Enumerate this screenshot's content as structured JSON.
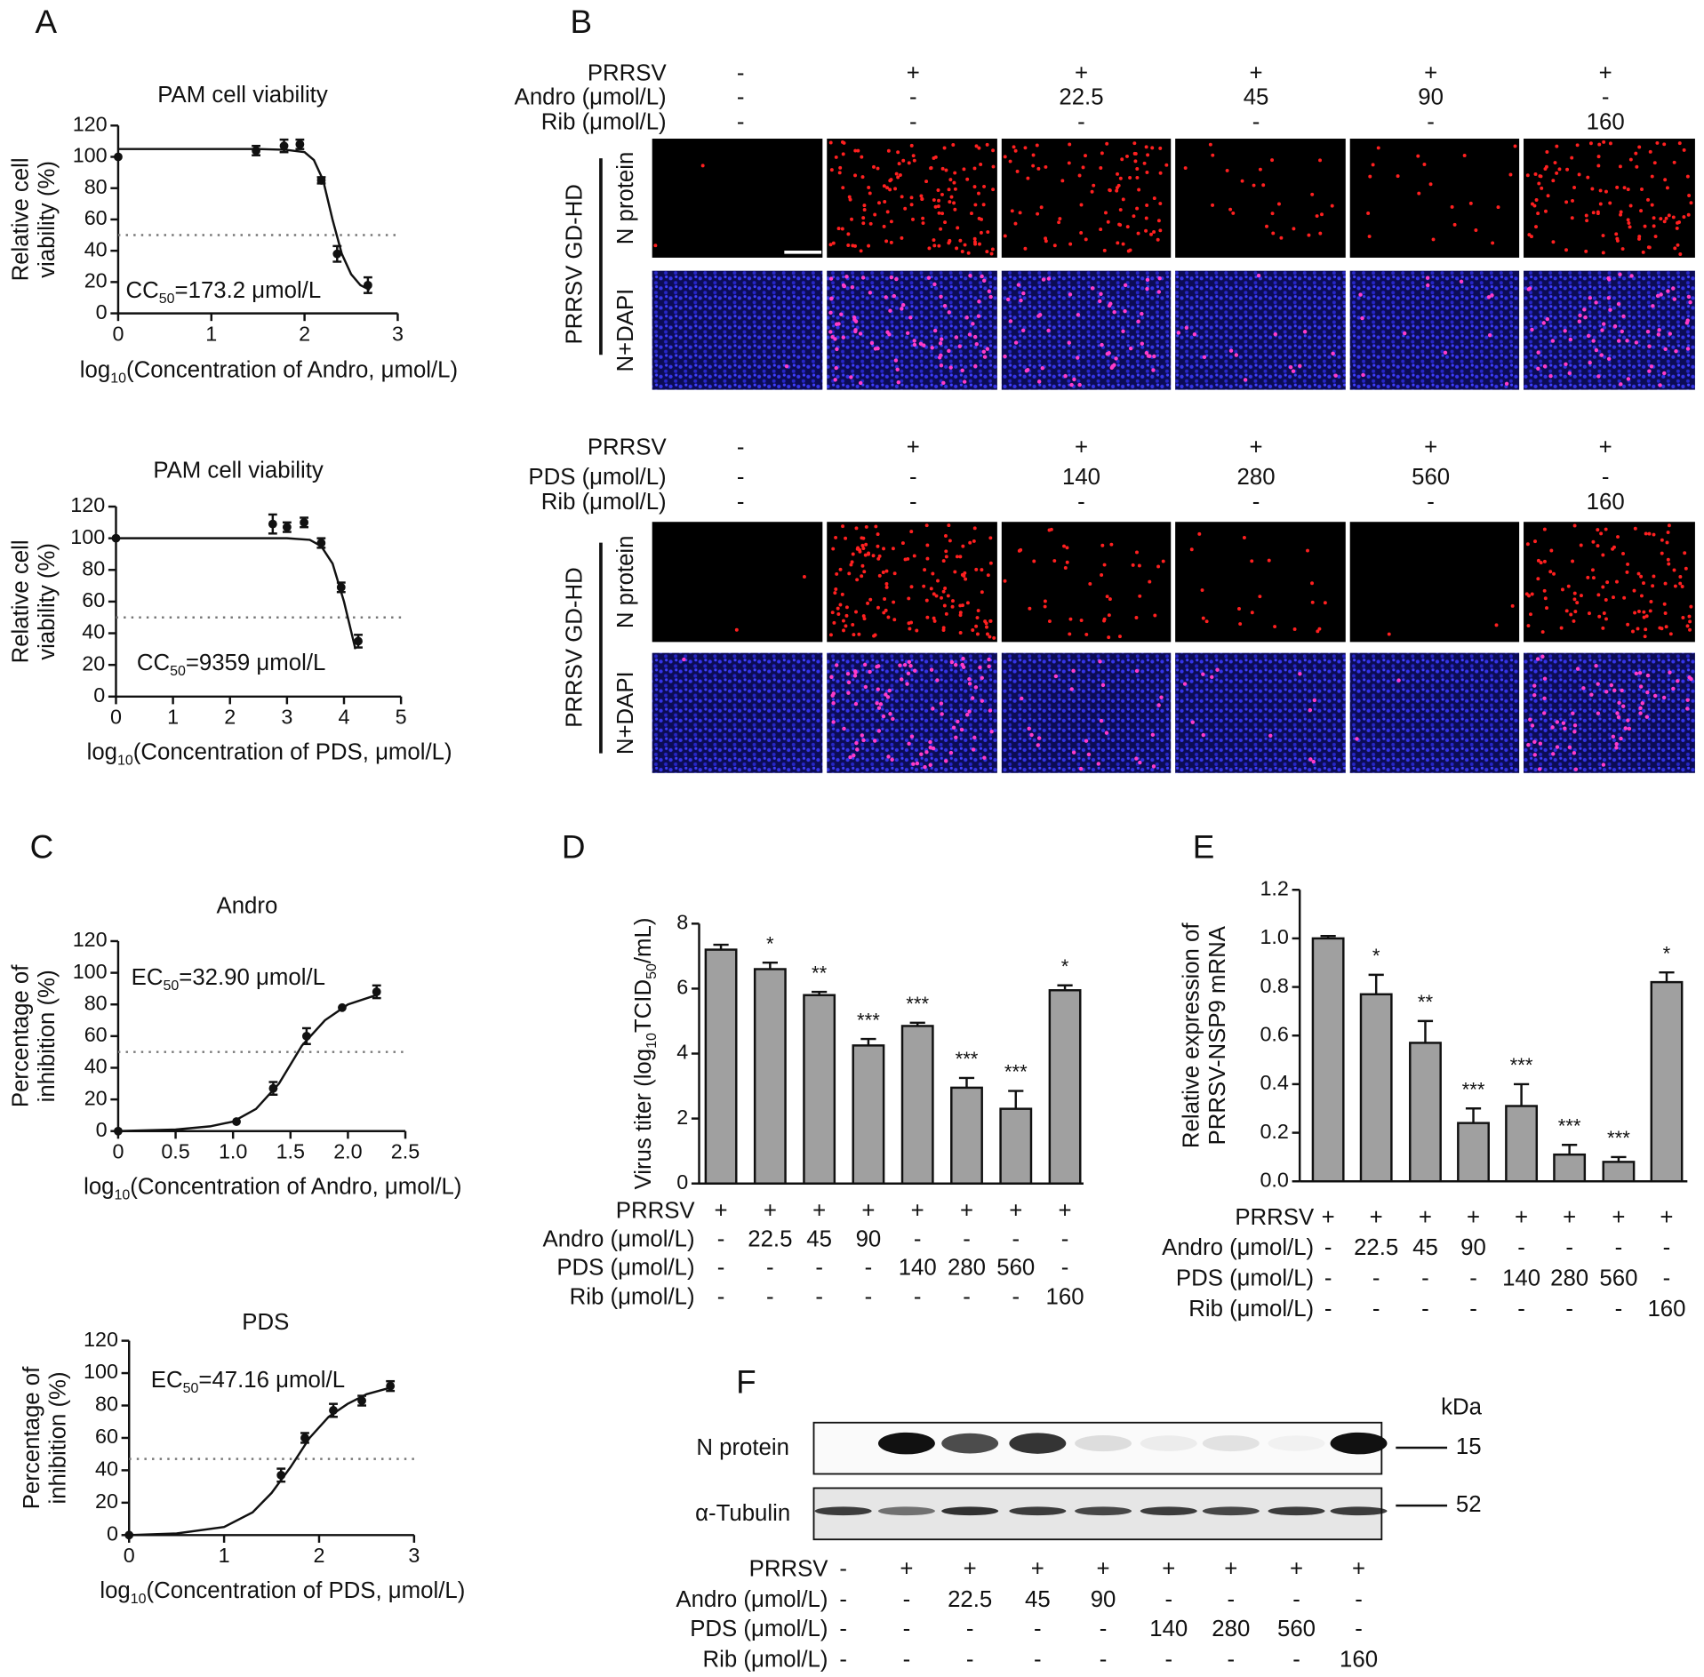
{
  "panel_labels": [
    "A",
    "B",
    "C",
    "D",
    "E",
    "F"
  ],
  "chart_data": [
    {
      "type": "line",
      "title": "PAM cell viability",
      "ylabel": [
        "Relative cell",
        "viability (%)"
      ],
      "xlabel": [
        [
          "log",
          "10",
          "(Concentration of Andro, μmol/L)"
        ]
      ],
      "annotation": [
        [
          "CC",
          "50",
          "=173.2 μmol/L"
        ]
      ],
      "xlim": [
        0,
        3
      ],
      "xticks": [
        0,
        1,
        2,
        3
      ],
      "ylim": [
        0,
        120
      ],
      "yticks": [
        0,
        20,
        40,
        60,
        80,
        100,
        120
      ],
      "hline": 50,
      "points": {
        "x": [
          0,
          1.48,
          1.78,
          1.95,
          2.18,
          2.35,
          2.68
        ],
        "values": [
          100,
          104,
          107,
          108,
          85,
          38,
          18
        ],
        "errors": [
          null,
          3,
          4,
          3,
          2,
          5,
          5
        ]
      },
      "fit": {
        "x": [
          0,
          1,
          1.5,
          1.8,
          2,
          2.1,
          2.2,
          2.3,
          2.4,
          2.5,
          2.6,
          2.7
        ],
        "values": [
          105,
          105,
          105,
          104.5,
          103,
          98,
          85,
          60,
          38,
          25,
          18,
          15
        ]
      }
    },
    {
      "type": "line",
      "title": "PAM cell viability",
      "ylabel": [
        "Relative cell",
        "viability (%)"
      ],
      "xlabel": [
        [
          "log",
          "10",
          "(Concentration of PDS, μmol/L)"
        ]
      ],
      "annotation": [
        [
          "CC",
          "50",
          "=9359 μmol/L"
        ]
      ],
      "xlim": [
        0,
        5
      ],
      "xticks": [
        0,
        1,
        2,
        3,
        4,
        5
      ],
      "ylim": [
        0,
        120
      ],
      "yticks": [
        0,
        20,
        40,
        60,
        80,
        100,
        120
      ],
      "hline": 50,
      "points": {
        "x": [
          0,
          2.75,
          3.0,
          3.3,
          3.6,
          3.95,
          4.25
        ],
        "values": [
          100,
          109,
          107,
          110,
          97,
          69,
          35
        ],
        "errors": [
          null,
          6,
          3,
          3,
          3,
          3,
          4
        ]
      },
      "fit": {
        "x": [
          0,
          2,
          3,
          3.4,
          3.6,
          3.8,
          4.0,
          4.1,
          4.2
        ],
        "values": [
          100,
          100,
          100,
          99,
          95,
          84,
          60,
          45,
          30
        ]
      }
    },
    {
      "type": "line",
      "title": "Andro",
      "ylabel": [
        "Percentage of",
        "inhibition (%)"
      ],
      "xlabel": [
        [
          "log",
          "10",
          "(Concentration of Andro, μmol/L)"
        ]
      ],
      "annotation": [
        [
          "EC",
          "50",
          "=32.90 μmol/L"
        ]
      ],
      "xlim": [
        0,
        2.5
      ],
      "xticks": [
        0,
        0.5,
        {
          "value": 1,
          "label": "1.0"
        },
        1.5,
        {
          "value": 2,
          "label": "2.0"
        },
        2.5
      ],
      "ylim": [
        0,
        120
      ],
      "yticks": [
        0,
        20,
        40,
        60,
        80,
        100,
        120
      ],
      "hline": 50,
      "points": {
        "x": [
          0,
          1.03,
          1.35,
          1.64,
          1.95,
          2.25
        ],
        "values": [
          0,
          6,
          27,
          60,
          78,
          88
        ],
        "errors": [
          null,
          null,
          4,
          5,
          null,
          4
        ]
      },
      "fit": {
        "x": [
          0,
          0.5,
          0.8,
          1.0,
          1.2,
          1.4,
          1.5,
          1.6,
          1.8,
          2.0,
          2.25
        ],
        "values": [
          0,
          1,
          3,
          6,
          14,
          30,
          42,
          54,
          70,
          80,
          86
        ]
      }
    },
    {
      "type": "line",
      "title": "PDS",
      "ylabel": [
        "Percentage of",
        "inhibition (%)"
      ],
      "xlabel": [
        [
          "log",
          "10",
          "(Concentration of PDS, μmol/L)"
        ]
      ],
      "annotation": [
        [
          "EC",
          "50",
          "=47.16 μmol/L"
        ]
      ],
      "xlim": [
        0,
        3
      ],
      "xticks": [
        0,
        1,
        2,
        3
      ],
      "ylim": [
        0,
        120
      ],
      "yticks": [
        0,
        20,
        40,
        60,
        80,
        100,
        120
      ],
      "hline": 47,
      "points": {
        "x": [
          0,
          1.6,
          1.85,
          2.15,
          2.45,
          2.75
        ],
        "values": [
          0,
          37,
          60,
          77,
          83,
          92
        ],
        "errors": [
          null,
          4,
          3,
          4,
          3,
          3
        ]
      },
      "fit": {
        "x": [
          0,
          0.5,
          1,
          1.3,
          1.5,
          1.7,
          1.9,
          2.1,
          2.3,
          2.5,
          2.75
        ],
        "values": [
          0,
          1,
          5,
          14,
          26,
          42,
          60,
          73,
          81,
          87,
          91
        ]
      }
    },
    {
      "type": "bar",
      "ylabel": [
        [
          "Virus titer (log",
          "10",
          "TCID",
          "50",
          "/mL)"
        ]
      ],
      "color": "#a0a0a0",
      "ylim": [
        0,
        8
      ],
      "yticks": [
        0,
        2,
        4,
        6,
        8
      ],
      "values": [
        7.2,
        6.6,
        5.8,
        4.25,
        4.85,
        2.95,
        2.3,
        5.95
      ],
      "errors": [
        0.15,
        0.2,
        0.1,
        0.2,
        0.1,
        0.3,
        0.55,
        0.15
      ],
      "significance": [
        null,
        "*",
        "**",
        "***",
        "***",
        "***",
        "***",
        "*"
      ],
      "conditions": [
        {
          "label": "PRRSV",
          "cells": [
            "+",
            "+",
            "+",
            "+",
            "+",
            "+",
            "+",
            "+"
          ]
        },
        {
          "label": "Andro (μmol/L)",
          "cells": [
            "-",
            "22.5",
            "45",
            "90",
            "-",
            "-",
            "-",
            "-"
          ]
        },
        {
          "label": "PDS (μmol/L)",
          "cells": [
            "-",
            "-",
            "-",
            "-",
            "140",
            "280",
            "560",
            "-"
          ]
        },
        {
          "label": "Rib (μmol/L)",
          "cells": [
            "-",
            "-",
            "-",
            "-",
            "-",
            "-",
            "-",
            "160"
          ]
        }
      ]
    },
    {
      "type": "bar",
      "ylabel": [
        "Relative expression of",
        "PRRSV-NSP9 mRNA"
      ],
      "color": "#a0a0a0",
      "ylim": [
        0,
        1.2
      ],
      "yticks": [
        {
          "value": 0,
          "label": "0.0"
        },
        0.2,
        0.4,
        0.6,
        0.8,
        {
          "value": 1,
          "label": "1.0"
        },
        1.2
      ],
      "values": [
        1.0,
        0.77,
        0.57,
        0.24,
        0.31,
        0.11,
        0.08,
        0.82
      ],
      "errors": [
        0.01,
        0.08,
        0.09,
        0.06,
        0.09,
        0.04,
        0.02,
        0.04
      ],
      "significance": [
        null,
        "*",
        "**",
        "***",
        "***",
        "***",
        "***",
        "*"
      ],
      "conditions": [
        {
          "label": "PRRSV",
          "cells": [
            "+",
            "+",
            "+",
            "+",
            "+",
            "+",
            "+",
            "+"
          ]
        },
        {
          "label": "Andro (μmol/L)",
          "cells": [
            "-",
            "22.5",
            "45",
            "90",
            "-",
            "-",
            "-",
            "-"
          ]
        },
        {
          "label": "PDS (μmol/L)",
          "cells": [
            "-",
            "-",
            "-",
            "-",
            "140",
            "280",
            "560",
            "-"
          ]
        },
        {
          "label": "Rib (μmol/L)",
          "cells": [
            "-",
            "-",
            "-",
            "-",
            "-",
            "-",
            "-",
            "160"
          ]
        }
      ]
    }
  ],
  "immunofluorescence": [
    {
      "side_label": "PRRSV GD-HD",
      "row_labels": [
        "N protein",
        "N+DAPI"
      ],
      "conditions": [
        {
          "label": "PRRSV",
          "cells": [
            "-",
            "+",
            "+",
            "+",
            "+",
            "+"
          ]
        },
        {
          "label": "Andro (μmol/L)",
          "cells": [
            "-",
            "-",
            "22.5",
            "45",
            "90",
            "-"
          ]
        },
        {
          "label": "Rib (μmol/L)",
          "cells": [
            "-",
            "-",
            "-",
            "-",
            "-",
            "160"
          ]
        }
      ]
    },
    {
      "side_label": "PRRSV GD-HD",
      "row_labels": [
        "N protein",
        "N+DAPI"
      ],
      "conditions": [
        {
          "label": "PRRSV",
          "cells": [
            "-",
            "+",
            "+",
            "+",
            "+",
            "+"
          ]
        },
        {
          "label": "PDS (μmol/L)",
          "cells": [
            "-",
            "-",
            "140",
            "280",
            "560",
            "-"
          ]
        },
        {
          "label": "Rib (μmol/L)",
          "cells": [
            "-",
            "-",
            "-",
            "-",
            "-",
            "160"
          ]
        }
      ]
    }
  ],
  "western_blot": {
    "unit": "kDa",
    "bands": [
      {
        "label": "N protein",
        "size": "15"
      },
      {
        "label": "α-Tubulin",
        "size": "52"
      }
    ],
    "conditions": [
      {
        "label": "PRRSV",
        "cells": [
          "-",
          "+",
          "+",
          "+",
          "+",
          "+",
          "+",
          "+",
          "+"
        ]
      },
      {
        "label": "Andro (μmol/L)",
        "cells": [
          "-",
          "-",
          "22.5",
          "45",
          "90",
          "-",
          "-",
          "-",
          "-"
        ]
      },
      {
        "label": "PDS (μmol/L)",
        "cells": [
          "-",
          "-",
          "-",
          "-",
          "-",
          "140",
          "280",
          "560",
          "-"
        ]
      },
      {
        "label": "Rib (μmol/L)",
        "cells": [
          "-",
          "-",
          "-",
          "-",
          "-",
          "-",
          "-",
          "-",
          "160"
        ]
      }
    ]
  }
}
